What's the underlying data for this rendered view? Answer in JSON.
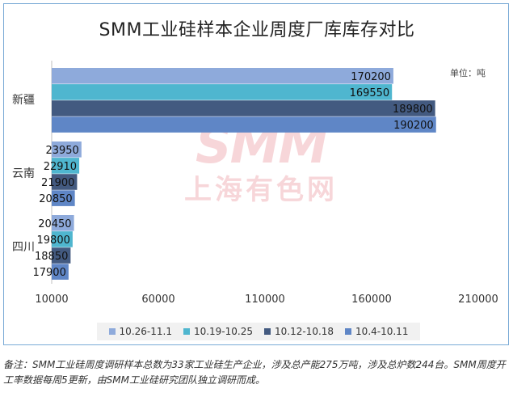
{
  "title": "SMM工业硅样本企业周度厂库库存对比",
  "unit": "单位：吨",
  "watermark": {
    "logo": "SMM",
    "text": "上海有色网"
  },
  "chart_data": {
    "type": "bar",
    "orientation": "horizontal",
    "title": "SMM工业硅样本企业周度厂库库存对比",
    "categories": [
      "新疆",
      "云南",
      "四川"
    ],
    "series": [
      {
        "name": "10.26-11.1",
        "color": "#8eaadb",
        "values": [
          170200,
          23950,
          20450
        ]
      },
      {
        "name": "10.19-10.25",
        "color": "#4fb6cf",
        "values": [
          169550,
          22910,
          19800
        ]
      },
      {
        "name": "10.12-10.18",
        "color": "#435a80",
        "values": [
          189800,
          21900,
          18850
        ]
      },
      {
        "name": "10.4-10.11",
        "color": "#5f86c6",
        "values": [
          190200,
          20850,
          17900
        ]
      }
    ],
    "xlim": [
      10000,
      210000
    ],
    "x_ticks": [
      10000,
      60000,
      110000,
      160000,
      210000
    ],
    "x_tick_labels": [
      "10000",
      "60000",
      "110000",
      "160000",
      "210000"
    ],
    "grid": false,
    "legend_position": "bottom",
    "data_labels": true
  },
  "footnote": "备注：SMM工业硅周度调研样本总数为33家工业硅生产企业，涉及总产能275万吨，涉及总炉数244台。SMM周度开工率数据每周5更新，由SMM工业硅研究团队独立调研而成。"
}
